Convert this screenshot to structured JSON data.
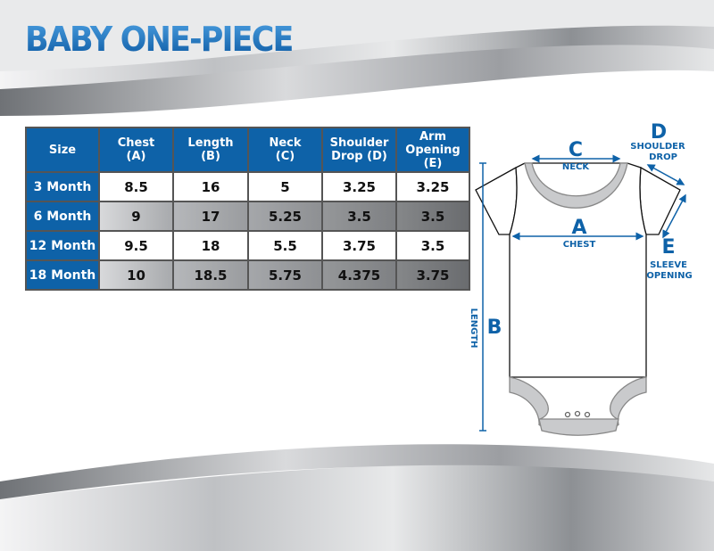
{
  "title": "BABY ONE-PIECE",
  "colors": {
    "accent": "#0e62a8",
    "silver": "#a8aaad"
  },
  "table": {
    "headers": [
      [
        "Size",
        ""
      ],
      [
        "Chest",
        "(A)"
      ],
      [
        "Length",
        "(B)"
      ],
      [
        "Neck",
        "(C)"
      ],
      [
        "Shoulder",
        "Drop (D)"
      ],
      [
        "Arm",
        "Opening (E)"
      ]
    ],
    "rows": [
      {
        "size": "3 Month",
        "values": [
          "8.5",
          "16",
          "5",
          "3.25",
          "3.25"
        ]
      },
      {
        "size": "6 Month",
        "values": [
          "9",
          "17",
          "5.25",
          "3.5",
          "3.5"
        ]
      },
      {
        "size": "12 Month",
        "values": [
          "9.5",
          "18",
          "5.5",
          "3.75",
          "3.5"
        ]
      },
      {
        "size": "18 Month",
        "values": [
          "10",
          "18.5",
          "5.75",
          "4.375",
          "3.75"
        ]
      }
    ]
  },
  "diagram": {
    "a_letter": "A",
    "a_label": "CHEST",
    "b_letter": "B",
    "b_label": "LENGTH",
    "c_letter": "C",
    "c_label": "NECK",
    "d_letter": "D",
    "d_label_1": "SHOULDER",
    "d_label_2": "DROP",
    "e_letter": "E",
    "e_label_1": "SLEEVE",
    "e_label_2": "OPENING"
  }
}
